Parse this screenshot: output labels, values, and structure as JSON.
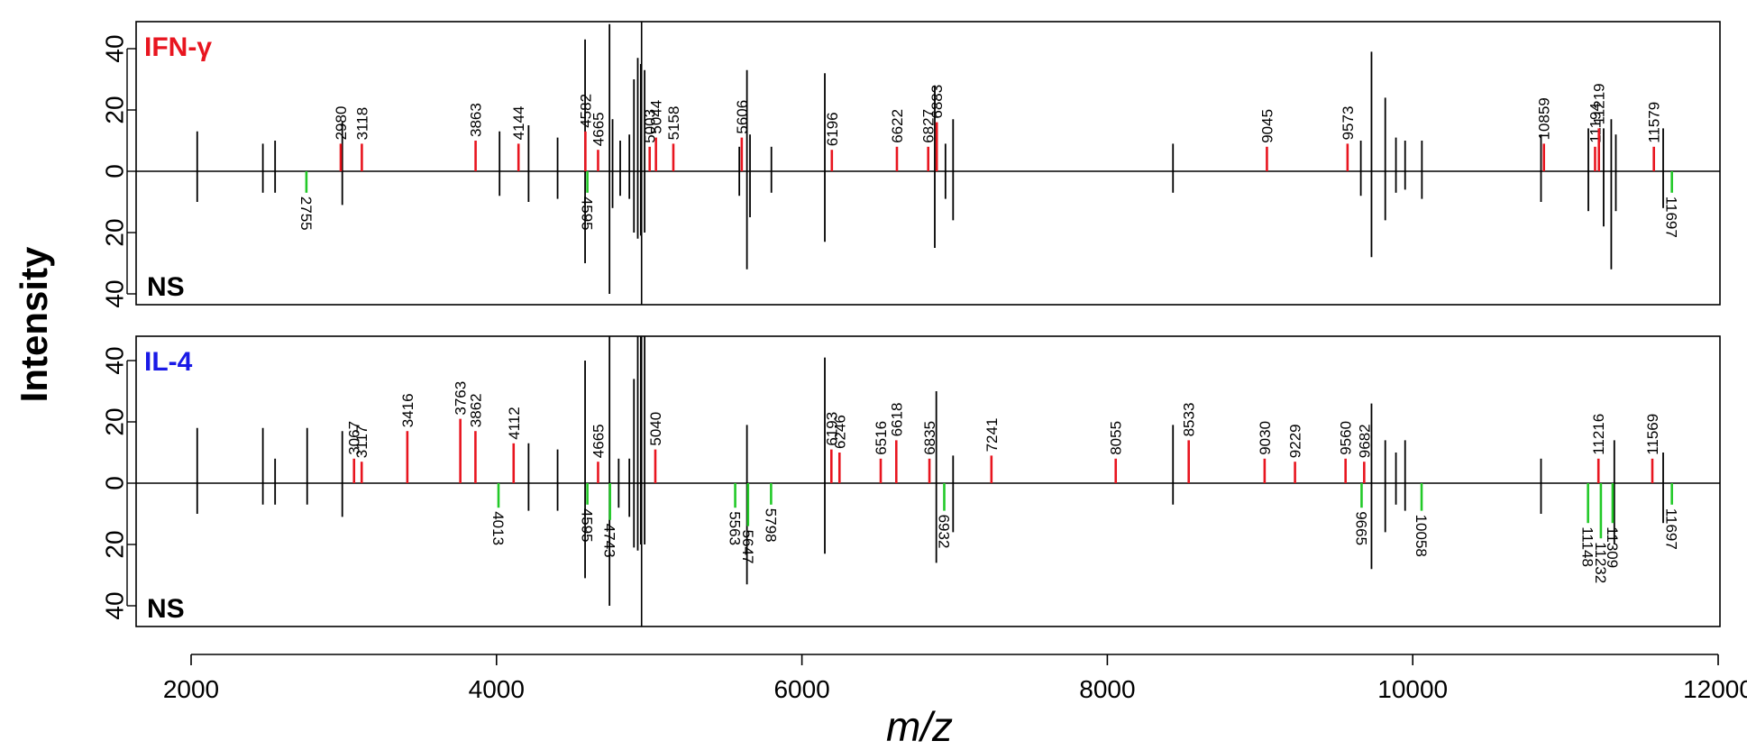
{
  "chart_data": {
    "type": "mirror-stick-spectrum",
    "xlabel": "m/z",
    "ylabel": "Intensity",
    "xlim": [
      1400,
      12000
    ],
    "x_ticks": [
      "2000",
      "4000",
      "6000",
      "8000",
      "10000",
      "12000"
    ],
    "y_ticks": [
      "40",
      "20",
      "0",
      "20",
      "40"
    ],
    "colors": {
      "up": "#e8151f",
      "down": "#22c928",
      "ref": "#000000"
    },
    "vline_mz": 4950,
    "panels": [
      {
        "title": "IFN-γ",
        "title_color": "#e8151f",
        "bottom_label": "NS",
        "ylim": [
          -45,
          48
        ],
        "up_peaks": [
          {
            "mz": 2980,
            "h": 9,
            "label": "2980"
          },
          {
            "mz": 3118,
            "h": 9,
            "label": "3118"
          },
          {
            "mz": 3863,
            "h": 10,
            "label": "3863"
          },
          {
            "mz": 4144,
            "h": 9,
            "label": "4144"
          },
          {
            "mz": 4582,
            "h": 13,
            "label": "4582"
          },
          {
            "mz": 4665,
            "h": 7,
            "label": "4665"
          },
          {
            "mz": 5003,
            "h": 8,
            "label": "5003"
          },
          {
            "mz": 5044,
            "h": 11,
            "label": "5044"
          },
          {
            "mz": 5158,
            "h": 9,
            "label": "5158"
          },
          {
            "mz": 5606,
            "h": 11,
            "label": "5606"
          },
          {
            "mz": 6196,
            "h": 7,
            "label": "6196"
          },
          {
            "mz": 6622,
            "h": 8,
            "label": "6622"
          },
          {
            "mz": 6827,
            "h": 8,
            "label": "6827"
          },
          {
            "mz": 6883,
            "h": 16,
            "label": "6883"
          },
          {
            "mz": 9045,
            "h": 8,
            "label": "9045"
          },
          {
            "mz": 9573,
            "h": 9,
            "label": "9573"
          },
          {
            "mz": 10859,
            "h": 9,
            "label": "10859"
          },
          {
            "mz": 11194,
            "h": 8,
            "label": "11194"
          },
          {
            "mz": 11219,
            "h": 14,
            "label": "11219"
          },
          {
            "mz": 11579,
            "h": 8,
            "label": "11579"
          }
        ],
        "down_peaks": [
          {
            "mz": 2755,
            "h": 7,
            "label": "2755"
          },
          {
            "mz": 4595,
            "h": 7,
            "label": "4595"
          },
          {
            "mz": 11697,
            "h": 7,
            "label": "11697"
          }
        ],
        "ref_peaks": [
          {
            "mz": 2040,
            "top": 13,
            "bottom": 10
          },
          {
            "mz": 2470,
            "top": 9,
            "bottom": 7
          },
          {
            "mz": 2550,
            "top": 10,
            "bottom": 7
          },
          {
            "mz": 2990,
            "top": 16,
            "bottom": 11
          },
          {
            "mz": 4020,
            "top": 13,
            "bottom": 8
          },
          {
            "mz": 4210,
            "top": 15,
            "bottom": 10
          },
          {
            "mz": 4400,
            "top": 11,
            "bottom": 9
          },
          {
            "mz": 4580,
            "top": 43,
            "bottom": 30
          },
          {
            "mz": 4740,
            "top": 48,
            "bottom": 40
          },
          {
            "mz": 4760,
            "top": 17,
            "bottom": 12
          },
          {
            "mz": 4810,
            "top": 10,
            "bottom": 8
          },
          {
            "mz": 4870,
            "top": 12,
            "bottom": 9
          },
          {
            "mz": 4900,
            "top": 30,
            "bottom": 20
          },
          {
            "mz": 4925,
            "top": 37,
            "bottom": 22
          },
          {
            "mz": 4945,
            "top": 35,
            "bottom": 21
          },
          {
            "mz": 4970,
            "top": 33,
            "bottom": 20
          },
          {
            "mz": 5590,
            "top": 8,
            "bottom": 8
          },
          {
            "mz": 5640,
            "top": 33,
            "bottom": 32
          },
          {
            "mz": 5660,
            "top": 12,
            "bottom": 15
          },
          {
            "mz": 5800,
            "top": 8,
            "bottom": 7
          },
          {
            "mz": 6150,
            "top": 32,
            "bottom": 23
          },
          {
            "mz": 6870,
            "top": 28,
            "bottom": 25
          },
          {
            "mz": 6940,
            "top": 9,
            "bottom": 9
          },
          {
            "mz": 6990,
            "top": 17,
            "bottom": 16
          },
          {
            "mz": 8430,
            "top": 9,
            "bottom": 7
          },
          {
            "mz": 9660,
            "top": 10,
            "bottom": 8
          },
          {
            "mz": 9730,
            "top": 39,
            "bottom": 28
          },
          {
            "mz": 9820,
            "top": 24,
            "bottom": 16
          },
          {
            "mz": 9890,
            "top": 11,
            "bottom": 7
          },
          {
            "mz": 9950,
            "top": 10,
            "bottom": 6
          },
          {
            "mz": 10060,
            "top": 10,
            "bottom": 9
          },
          {
            "mz": 10840,
            "top": 12,
            "bottom": 10
          },
          {
            "mz": 11150,
            "top": 14,
            "bottom": 13
          },
          {
            "mz": 11250,
            "top": 14,
            "bottom": 18
          },
          {
            "mz": 11300,
            "top": 17,
            "bottom": 32
          },
          {
            "mz": 11330,
            "top": 12,
            "bottom": 13
          },
          {
            "mz": 11640,
            "top": 14,
            "bottom": 12
          }
        ]
      },
      {
        "title": "IL-4",
        "title_color": "#1a1ae6",
        "bottom_label": "NS",
        "ylim": [
          -47,
          48
        ],
        "up_peaks": [
          {
            "mz": 3067,
            "h": 8,
            "label": "3067"
          },
          {
            "mz": 3117,
            "h": 7,
            "label": "3117"
          },
          {
            "mz": 3416,
            "h": 17,
            "label": "3416"
          },
          {
            "mz": 3763,
            "h": 21,
            "label": "3763"
          },
          {
            "mz": 3862,
            "h": 17,
            "label": "3862"
          },
          {
            "mz": 4112,
            "h": 13,
            "label": "4112"
          },
          {
            "mz": 4665,
            "h": 7,
            "label": "4665"
          },
          {
            "mz": 5040,
            "h": 11,
            "label": "5040"
          },
          {
            "mz": 6193,
            "h": 11,
            "label": "6193"
          },
          {
            "mz": 6246,
            "h": 10,
            "label": "6246"
          },
          {
            "mz": 6516,
            "h": 8,
            "label": "6516"
          },
          {
            "mz": 6618,
            "h": 14,
            "label": "6618"
          },
          {
            "mz": 6835,
            "h": 8,
            "label": "6835"
          },
          {
            "mz": 7241,
            "h": 9,
            "label": "7241"
          },
          {
            "mz": 8055,
            "h": 8,
            "label": "8055"
          },
          {
            "mz": 8533,
            "h": 14,
            "label": "8533"
          },
          {
            "mz": 9030,
            "h": 8,
            "label": "9030"
          },
          {
            "mz": 9229,
            "h": 7,
            "label": "9229"
          },
          {
            "mz": 9560,
            "h": 8,
            "label": "9560"
          },
          {
            "mz": 9682,
            "h": 7,
            "label": "9682"
          },
          {
            "mz": 11216,
            "h": 8,
            "label": "11216"
          },
          {
            "mz": 11569,
            "h": 8,
            "label": "11569"
          }
        ],
        "down_peaks": [
          {
            "mz": 4013,
            "h": 8,
            "label": "4013"
          },
          {
            "mz": 4595,
            "h": 7,
            "label": "4595"
          },
          {
            "mz": 4743,
            "h": 12,
            "label": "4743"
          },
          {
            "mz": 5563,
            "h": 8,
            "label": "5563"
          },
          {
            "mz": 5647,
            "h": 14,
            "label": "5647"
          },
          {
            "mz": 5798,
            "h": 7,
            "label": "5798"
          },
          {
            "mz": 6932,
            "h": 9,
            "label": "6932"
          },
          {
            "mz": 9665,
            "h": 8,
            "label": "9665"
          },
          {
            "mz": 10058,
            "h": 9,
            "label": "10058"
          },
          {
            "mz": 11148,
            "h": 13,
            "label": "11148"
          },
          {
            "mz": 11232,
            "h": 18,
            "label": "11232"
          },
          {
            "mz": 11309,
            "h": 13,
            "label": "11309"
          },
          {
            "mz": 11697,
            "h": 7,
            "label": "11697"
          }
        ],
        "ref_peaks": [
          {
            "mz": 2040,
            "top": 18,
            "bottom": 10
          },
          {
            "mz": 2470,
            "top": 18,
            "bottom": 7
          },
          {
            "mz": 2550,
            "top": 8,
            "bottom": 7
          },
          {
            "mz": 2760,
            "top": 18,
            "bottom": 7
          },
          {
            "mz": 2990,
            "top": 17,
            "bottom": 11
          },
          {
            "mz": 4210,
            "top": 13,
            "bottom": 9
          },
          {
            "mz": 4400,
            "top": 11,
            "bottom": 9
          },
          {
            "mz": 4580,
            "top": 40,
            "bottom": 31
          },
          {
            "mz": 4740,
            "top": 48,
            "bottom": 40
          },
          {
            "mz": 4800,
            "top": 8,
            "bottom": 8
          },
          {
            "mz": 4870,
            "top": 8,
            "bottom": 11
          },
          {
            "mz": 4900,
            "top": 34,
            "bottom": 21
          },
          {
            "mz": 4925,
            "top": 48,
            "bottom": 22
          },
          {
            "mz": 4945,
            "top": 48,
            "bottom": 20
          },
          {
            "mz": 4970,
            "top": 48,
            "bottom": 20
          },
          {
            "mz": 5640,
            "top": 19,
            "bottom": 33
          },
          {
            "mz": 6150,
            "top": 41,
            "bottom": 23
          },
          {
            "mz": 6880,
            "top": 30,
            "bottom": 26
          },
          {
            "mz": 6990,
            "top": 9,
            "bottom": 16
          },
          {
            "mz": 8430,
            "top": 19,
            "bottom": 7
          },
          {
            "mz": 9730,
            "top": 26,
            "bottom": 28
          },
          {
            "mz": 9820,
            "top": 14,
            "bottom": 16
          },
          {
            "mz": 9890,
            "top": 10,
            "bottom": 7
          },
          {
            "mz": 9950,
            "top": 14,
            "bottom": 9
          },
          {
            "mz": 10840,
            "top": 8,
            "bottom": 10
          },
          {
            "mz": 11320,
            "top": 14,
            "bottom": 20
          },
          {
            "mz": 11640,
            "top": 10,
            "bottom": 13
          }
        ]
      }
    ]
  }
}
